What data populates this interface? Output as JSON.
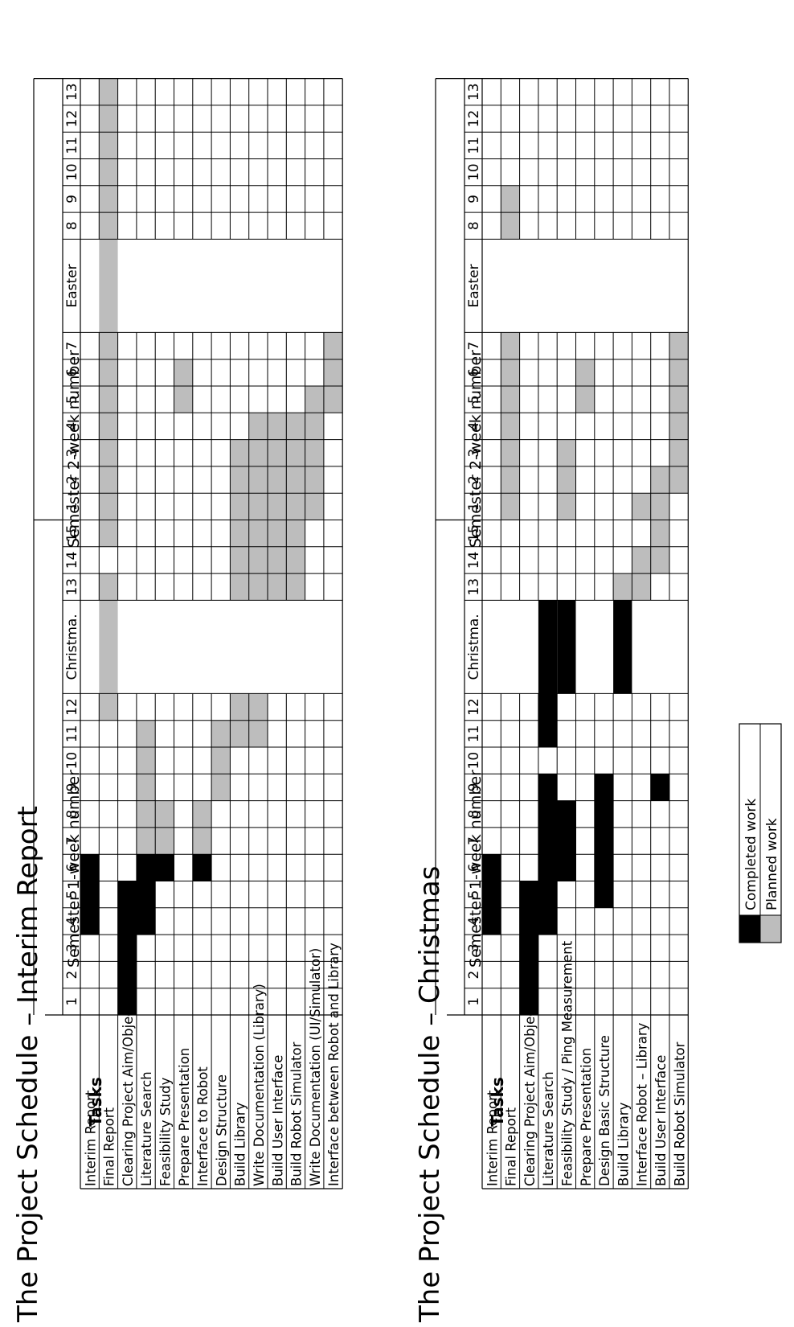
{
  "chart_data": [
    {
      "type": "table",
      "title": "The Project Schedule – Interim Report",
      "tasks_header": "Tasks",
      "group_labels": [
        "Semester 1-week number",
        "Semester 2-week number"
      ],
      "columns": [
        "1",
        "2",
        "3",
        "4",
        "5",
        "6",
        "7",
        "8",
        "9",
        "10",
        "11",
        "12",
        "Christma.",
        "13",
        "14",
        "15",
        "1",
        "2",
        "3",
        "4",
        "5",
        "6",
        "7",
        "Easter",
        "8",
        "9",
        "10",
        "11",
        "12",
        "13"
      ],
      "break_columns": [
        12,
        23
      ],
      "tasks": [
        {
          "name": "Interim Report",
          "completed": [
            3,
            4,
            5
          ],
          "planned": []
        },
        {
          "name": "Final Report",
          "completed": [],
          "planned": [
            11,
            12,
            13,
            15,
            16,
            17,
            18,
            19,
            20,
            21,
            22,
            23,
            24,
            25,
            26,
            27,
            28,
            29
          ]
        },
        {
          "name": "Clearing Project Aim/Objectives",
          "completed": [
            0,
            1,
            2,
            3,
            4
          ],
          "planned": []
        },
        {
          "name": "Literature Search",
          "completed": [
            3,
            4,
            5
          ],
          "planned": [
            6,
            7,
            8,
            9,
            10
          ]
        },
        {
          "name": "Feasibility Study",
          "completed": [
            5
          ],
          "planned": [
            6,
            7
          ]
        },
        {
          "name": "Prepare Presentation",
          "completed": [],
          "planned": [
            20,
            21
          ]
        },
        {
          "name": "Interface to Robot",
          "completed": [
            5
          ],
          "planned": [
            6,
            7
          ]
        },
        {
          "name": "Design Structure",
          "completed": [],
          "planned": [
            8,
            9,
            10
          ]
        },
        {
          "name": "Build Library",
          "completed": [],
          "planned": [
            10,
            11,
            13,
            14,
            15,
            16,
            17,
            18
          ]
        },
        {
          "name": "Write Documentation (Library)",
          "completed": [],
          "planned": [
            10,
            11,
            13,
            14,
            15,
            16,
            17,
            18,
            19
          ]
        },
        {
          "name": "Build User Interface",
          "completed": [],
          "planned": [
            13,
            14,
            15,
            16,
            17,
            18,
            19
          ]
        },
        {
          "name": "Build Robot Simulator",
          "completed": [],
          "planned": [
            13,
            14,
            15,
            16,
            17,
            18,
            19
          ]
        },
        {
          "name": "Write Documentation (UI/Simulator)",
          "completed": [],
          "planned": [
            16,
            17,
            18,
            19,
            20
          ]
        },
        {
          "name": "Interface between Robot and Library",
          "completed": [],
          "planned": [
            20,
            21,
            22
          ]
        }
      ]
    },
    {
      "type": "table",
      "title": "The Project Schedule – Christmas",
      "tasks_header": "Tasks",
      "group_labels": [
        "Semester 1-week number",
        "Semester 2-week number"
      ],
      "columns": [
        "1",
        "2",
        "3",
        "4",
        "5",
        "6",
        "7",
        "8",
        "9",
        "10",
        "11",
        "12",
        "Christma.",
        "13",
        "14",
        "15",
        "1",
        "2",
        "3",
        "4",
        "5",
        "6",
        "7",
        "Easter",
        "8",
        "9",
        "10",
        "11",
        "12",
        "13"
      ],
      "break_columns": [
        12,
        23
      ],
      "tasks": [
        {
          "name": "Interim Report",
          "completed": [
            3,
            4,
            5
          ],
          "planned": []
        },
        {
          "name": "Final Report",
          "completed": [],
          "planned": [
            16,
            17,
            18,
            19,
            20,
            21,
            22,
            24,
            25
          ]
        },
        {
          "name": "Clearing Project Aim/Objectives",
          "completed": [
            0,
            1,
            2,
            3,
            4
          ],
          "planned": []
        },
        {
          "name": "Literature Search",
          "completed": [
            3,
            4,
            5,
            6,
            7,
            8,
            10,
            11,
            12
          ],
          "planned": []
        },
        {
          "name": "Feasibility Study / Ping Measurement",
          "completed": [
            5,
            6,
            7,
            12
          ],
          "planned": [
            16,
            17,
            18
          ]
        },
        {
          "name": "Prepare Presentation",
          "completed": [],
          "planned": [
            20,
            21
          ]
        },
        {
          "name": "Design Basic Structure",
          "completed": [
            4,
            5,
            6,
            7,
            8
          ],
          "planned": []
        },
        {
          "name": "Build Library",
          "completed": [
            12
          ],
          "planned": [
            13
          ]
        },
        {
          "name": "Interface Robot – Library",
          "completed": [],
          "planned": [
            13,
            14,
            16
          ]
        },
        {
          "name": "Build User Interface",
          "completed": [
            8
          ],
          "planned": [
            14,
            15,
            16,
            17
          ]
        },
        {
          "name": "Build Robot Simulator",
          "completed": [],
          "planned": [
            17,
            18,
            19,
            20,
            21,
            22
          ]
        }
      ]
    }
  ],
  "legend": {
    "placement": "bottom",
    "items": [
      {
        "label": "Completed work",
        "color": "#000000"
      },
      {
        "label": "Planned work",
        "color": "#bdbdbd"
      }
    ]
  }
}
